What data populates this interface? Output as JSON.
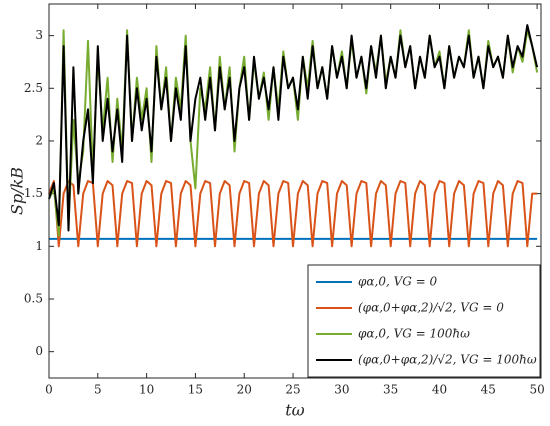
{
  "chart_data": {
    "type": "line",
    "xlabel": "tω",
    "ylabel": "Sp/kB",
    "xlim": [
      0,
      50.4
    ],
    "ylim": [
      -0.25,
      3.3
    ],
    "xticks": [
      0,
      5,
      10,
      15,
      20,
      25,
      30,
      35,
      40,
      45,
      50
    ],
    "yticks": [
      0,
      0.5,
      1,
      1.5,
      2,
      2.5,
      3
    ],
    "grid": false,
    "legend": "lower right",
    "x": [
      0,
      0.5,
      1,
      1.5,
      2,
      2.5,
      3,
      3.5,
      4,
      4.5,
      5,
      5.5,
      6,
      6.5,
      7,
      7.5,
      8,
      8.5,
      9,
      9.5,
      10,
      10.5,
      11,
      11.5,
      12,
      12.5,
      13,
      13.5,
      14,
      14.5,
      15,
      15.5,
      16,
      16.5,
      17,
      17.5,
      18,
      18.5,
      19,
      19.5,
      20,
      20.5,
      21,
      21.5,
      22,
      22.5,
      23,
      23.5,
      24,
      24.5,
      25,
      25.5,
      26,
      26.5,
      27,
      27.5,
      28,
      28.5,
      29,
      29.5,
      30,
      30.5,
      31,
      31.5,
      32,
      32.5,
      33,
      33.5,
      34,
      34.5,
      35,
      35.5,
      36,
      36.5,
      37,
      37.5,
      38,
      38.5,
      39,
      39.5,
      40,
      40.5,
      41,
      41.5,
      42,
      42.5,
      43,
      43.5,
      44,
      44.5,
      45,
      45.5,
      46,
      46.5,
      47,
      47.5,
      48,
      48.5,
      49,
      49.5,
      50
    ],
    "series": [
      {
        "name": "φα,0, VG = 0",
        "color": "#0072BD",
        "values": [
          1.07,
          1.07,
          1.07,
          1.07,
          1.07,
          1.07,
          1.07,
          1.07,
          1.07,
          1.07,
          1.07,
          1.07,
          1.07,
          1.07,
          1.07,
          1.07,
          1.07,
          1.07,
          1.07,
          1.07,
          1.07,
          1.07,
          1.07,
          1.07,
          1.07,
          1.07,
          1.07,
          1.07,
          1.07,
          1.07,
          1.07,
          1.07,
          1.07,
          1.07,
          1.07,
          1.07,
          1.07,
          1.07,
          1.07,
          1.07,
          1.07,
          1.07,
          1.07,
          1.07,
          1.07,
          1.07,
          1.07,
          1.07,
          1.07,
          1.07,
          1.07,
          1.07,
          1.07,
          1.07,
          1.07,
          1.07,
          1.07,
          1.07,
          1.07,
          1.07,
          1.07,
          1.07,
          1.07,
          1.07,
          1.07,
          1.07,
          1.07,
          1.07,
          1.07,
          1.07,
          1.07,
          1.07,
          1.07,
          1.07,
          1.07,
          1.07,
          1.07,
          1.07,
          1.07,
          1.07,
          1.07,
          1.07,
          1.07,
          1.07,
          1.07,
          1.07,
          1.07,
          1.07,
          1.07,
          1.07,
          1.07,
          1.07,
          1.07,
          1.07,
          1.07,
          1.07,
          1.07,
          1.07,
          1.07,
          1.07,
          1.07
        ]
      },
      {
        "name": "(φα,0+φα,2)/√2, VG = 0",
        "color": "#D95319",
        "values": [
          1.5,
          1.62,
          1.0,
          1.5,
          1.62,
          1.58,
          1.0,
          1.5,
          1.62,
          1.6,
          1.0,
          1.5,
          1.62,
          1.58,
          1.0,
          1.5,
          1.62,
          1.6,
          1.0,
          1.5,
          1.62,
          1.58,
          1.0,
          1.5,
          1.62,
          1.6,
          1.0,
          1.5,
          1.62,
          1.58,
          1.0,
          1.5,
          1.62,
          1.6,
          1.0,
          1.5,
          1.62,
          1.58,
          1.0,
          1.5,
          1.62,
          1.6,
          1.0,
          1.5,
          1.62,
          1.58,
          1.0,
          1.5,
          1.62,
          1.6,
          1.0,
          1.5,
          1.62,
          1.58,
          1.0,
          1.5,
          1.62,
          1.6,
          1.0,
          1.5,
          1.62,
          1.58,
          1.0,
          1.5,
          1.62,
          1.6,
          1.0,
          1.5,
          1.62,
          1.58,
          1.0,
          1.5,
          1.62,
          1.6,
          1.0,
          1.5,
          1.62,
          1.58,
          1.0,
          1.5,
          1.62,
          1.6,
          1.0,
          1.5,
          1.62,
          1.58,
          1.0,
          1.5,
          1.62,
          1.6,
          1.0,
          1.5,
          1.62,
          1.58,
          1.0,
          1.5,
          1.62,
          1.6,
          1.0,
          1.5,
          1.5
        ]
      },
      {
        "name": "φα,0, VG = 100ħω",
        "color": "#77AC30",
        "values": [
          1.45,
          1.55,
          1.1,
          3.05,
          1.2,
          2.2,
          1.6,
          1.9,
          2.95,
          1.7,
          2.8,
          2.1,
          2.6,
          1.8,
          2.4,
          1.9,
          3.05,
          2.0,
          2.6,
          2.2,
          2.5,
          1.8,
          2.9,
          2.3,
          2.7,
          2.0,
          2.6,
          2.3,
          3.0,
          2.0,
          1.55,
          2.5,
          2.3,
          2.7,
          2.1,
          2.8,
          2.3,
          2.7,
          1.9,
          2.5,
          2.8,
          2.2,
          2.75,
          2.4,
          2.65,
          2.2,
          2.7,
          2.3,
          2.85,
          2.5,
          2.6,
          2.2,
          2.8,
          2.5,
          2.95,
          2.5,
          2.7,
          2.4,
          2.9,
          2.6,
          2.85,
          2.5,
          2.95,
          2.6,
          2.8,
          2.45,
          2.9,
          2.65,
          3.0,
          2.55,
          2.8,
          2.6,
          3.05,
          2.7,
          2.9,
          2.5,
          2.8,
          2.6,
          3.0,
          2.7,
          2.85,
          2.5,
          2.9,
          2.6,
          2.8,
          2.7,
          3.05,
          2.6,
          2.8,
          2.5,
          2.95,
          2.7,
          2.8,
          2.6,
          3.0,
          2.65,
          2.9,
          2.75,
          3.05,
          2.9,
          2.65
        ]
      },
      {
        "name": "(φα,0+φα,2)/√2, VG = 100ħω",
        "color": "#000000",
        "values": [
          1.45,
          1.6,
          1.2,
          2.9,
          1.15,
          2.7,
          1.5,
          2.0,
          2.3,
          1.6,
          2.9,
          2.0,
          2.4,
          1.9,
          2.3,
          1.8,
          3.0,
          2.0,
          2.5,
          2.1,
          2.4,
          1.9,
          2.8,
          2.3,
          2.6,
          2.0,
          2.5,
          2.2,
          2.9,
          2.0,
          2.4,
          2.6,
          2.2,
          2.6,
          2.1,
          2.7,
          2.3,
          2.6,
          2.0,
          2.5,
          2.7,
          2.2,
          2.8,
          2.4,
          2.6,
          2.3,
          2.7,
          2.2,
          2.8,
          2.5,
          2.6,
          2.3,
          2.8,
          2.4,
          2.9,
          2.5,
          2.7,
          2.4,
          2.9,
          2.6,
          2.8,
          2.5,
          3.0,
          2.6,
          2.8,
          2.5,
          2.9,
          2.6,
          3.0,
          2.5,
          2.8,
          2.6,
          3.0,
          2.7,
          2.9,
          2.5,
          2.8,
          2.6,
          3.0,
          2.7,
          2.8,
          2.5,
          2.9,
          2.6,
          2.8,
          2.7,
          3.0,
          2.6,
          2.8,
          2.5,
          2.9,
          2.7,
          2.8,
          2.6,
          3.0,
          2.7,
          2.9,
          2.8,
          3.1,
          2.9,
          2.7
        ]
      }
    ]
  }
}
